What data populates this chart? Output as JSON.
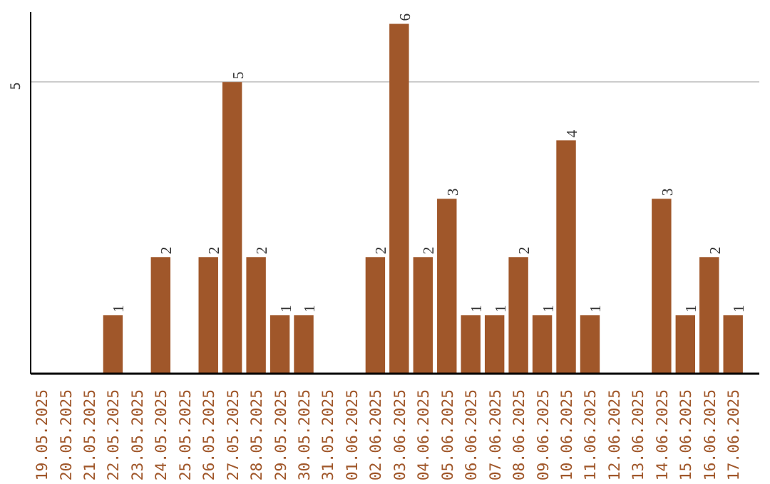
{
  "chart_data": {
    "type": "bar",
    "categories": [
      "19.05.2025",
      "20.05.2025",
      "21.05.2025",
      "22.05.2025",
      "23.05.2025",
      "24.05.2025",
      "25.05.2025",
      "26.05.2025",
      "27.05.2025",
      "28.05.2025",
      "29.05.2025",
      "30.05.2025",
      "31.05.2025",
      "01.06.2025",
      "02.06.2025",
      "03.06.2025",
      "04.06.2025",
      "05.06.2025",
      "06.06.2025",
      "07.06.2025",
      "08.06.2025",
      "09.06.2025",
      "10.06.2025",
      "11.06.2025",
      "12.06.2025",
      "13.06.2025",
      "14.06.2025",
      "15.06.2025",
      "16.06.2025",
      "17.06.2025"
    ],
    "values": [
      0,
      0,
      0,
      1,
      0,
      2,
      0,
      2,
      5,
      2,
      1,
      1,
      0,
      0,
      2,
      6,
      2,
      3,
      1,
      1,
      2,
      1,
      4,
      1,
      0,
      0,
      3,
      1,
      2,
      1
    ],
    "value_labels": [
      null,
      null,
      null,
      "1",
      null,
      "2",
      null,
      "2",
      "5",
      "2",
      "1",
      "1",
      null,
      null,
      "2",
      "6",
      "2",
      "3",
      "1",
      "1",
      "2",
      "1",
      "4",
      "1",
      null,
      null,
      "3",
      "1",
      "2",
      "1"
    ],
    "color": "#a0572a",
    "ylim": [
      0,
      6.2
    ],
    "yticks": [
      5
    ],
    "grid": "y"
  }
}
